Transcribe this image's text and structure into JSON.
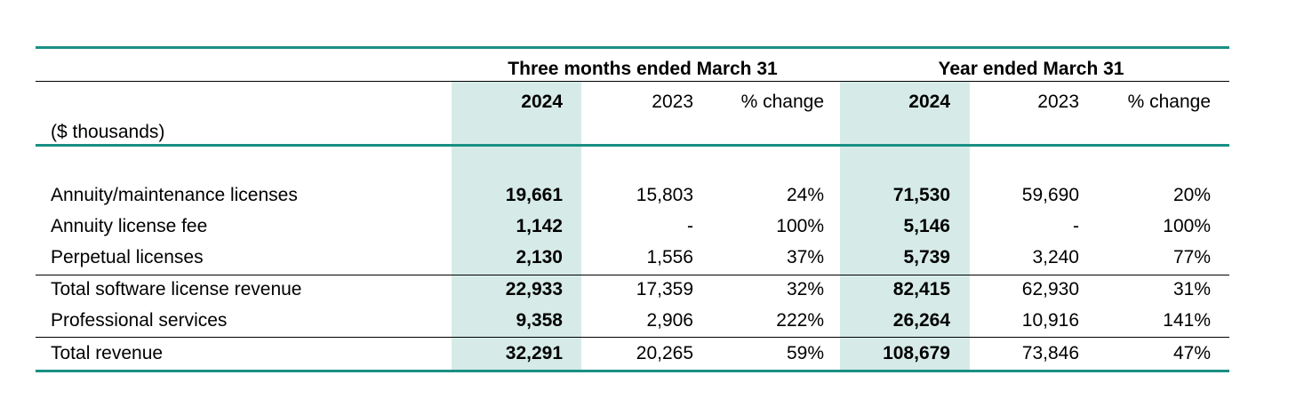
{
  "table": {
    "units_label": "($ thousands)",
    "groups": [
      {
        "title": "Three months ended March 31"
      },
      {
        "title": "Year ended March 31"
      }
    ],
    "columns": [
      "2024",
      "2023",
      "% change",
      "2024",
      "2023",
      "% change"
    ],
    "rows": [
      {
        "label": "Annuity/maintenance licenses",
        "values": [
          "19,661",
          "15,803",
          "24%",
          "71,530",
          "59,690",
          "20%"
        ]
      },
      {
        "label": "Annuity license fee",
        "values": [
          "1,142",
          "-",
          "100%",
          "5,146",
          "-",
          "100%"
        ]
      },
      {
        "label": "Perpetual licenses",
        "values": [
          "2,130",
          "1,556",
          "37%",
          "5,739",
          "3,240",
          "77%"
        ]
      },
      {
        "label": "Total software license revenue",
        "values": [
          "22,933",
          "17,359",
          "32%",
          "82,415",
          "62,930",
          "31%"
        ]
      },
      {
        "label": "Professional services",
        "values": [
          "9,358",
          "2,906",
          "222%",
          "26,264",
          "10,916",
          "141%"
        ]
      },
      {
        "label": "Total revenue",
        "values": [
          "32,291",
          "20,265",
          "59%",
          "108,679",
          "73,846",
          "47%"
        ]
      }
    ],
    "colors": {
      "accent_rule": "#1a8f84",
      "highlight_column": "#d6ebe7"
    }
  }
}
